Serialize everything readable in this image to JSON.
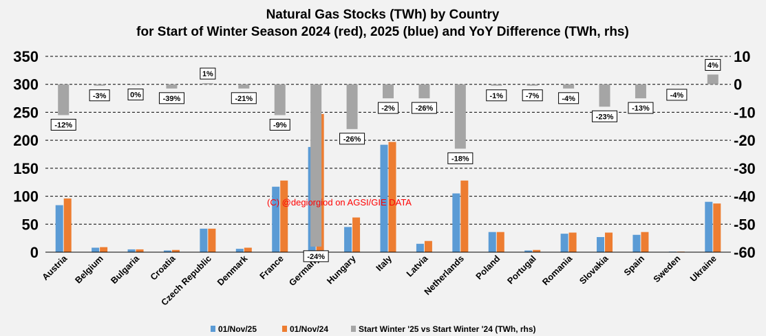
{
  "chart_data": {
    "type": "bar",
    "title": "Natural Gas Stocks (TWh) by Country",
    "subtitle": "for Start of Winter Season 2024 (red), 2025 (blue) and YoY Difference (TWh, rhs)",
    "watermark": "(C) @degiorgiod on AGSI/GIE DATA",
    "categories": [
      "Austria",
      "Belgium",
      "Bulgaria",
      "Croatia",
      "Czech Republic",
      "Denmark",
      "France",
      "Germany",
      "Hungary",
      "Italy",
      "Latvia",
      "Netherlands",
      "Poland",
      "Portugal",
      "Romania",
      "Slovakia",
      "Spain",
      "Sweden",
      "Ukraine"
    ],
    "series": [
      {
        "name": "01/Nov/25",
        "axis": "left",
        "color": "#5b9bd5",
        "values": [
          84,
          8,
          5,
          3,
          42,
          6,
          117,
          188,
          45,
          192,
          15,
          105,
          36,
          3,
          33,
          27,
          31,
          1,
          90
        ]
      },
      {
        "name": "01/Nov/24",
        "axis": "left",
        "color": "#ed7d31",
        "values": [
          96,
          9,
          5,
          4,
          42,
          8,
          128,
          247,
          62,
          197,
          20,
          128,
          36,
          4,
          35,
          35,
          36,
          1,
          87
        ]
      },
      {
        "name": "Start Winter '25 vs Start Winter '24 (TWh, rhs)",
        "axis": "right",
        "color": "#a5a5a5",
        "values": [
          -11,
          -0.5,
          -0.2,
          -1.5,
          0.4,
          -1.5,
          -11,
          -58,
          -16,
          -5,
          -5,
          -23,
          -0.5,
          -0.5,
          -1.5,
          -8,
          -5,
          -0.3,
          3.5
        ],
        "labels": [
          "-12%",
          "-3%",
          "0%",
          "-39%",
          "1%",
          "-21%",
          "-9%",
          "-24%",
          "-26%",
          "-2%",
          "-26%",
          "-18%",
          "-1%",
          "-7%",
          "-4%",
          "-23%",
          "-13%",
          "-4%",
          "4%"
        ]
      }
    ],
    "ylim": [
      0,
      350
    ],
    "y_ticks": [
      0,
      50,
      100,
      150,
      200,
      250,
      300,
      350
    ],
    "y2lim": [
      -60,
      10
    ],
    "y2_ticks": [
      -60,
      -50,
      -40,
      -30,
      -20,
      -10,
      0,
      10
    ],
    "grid": true,
    "legend": "bottom"
  }
}
